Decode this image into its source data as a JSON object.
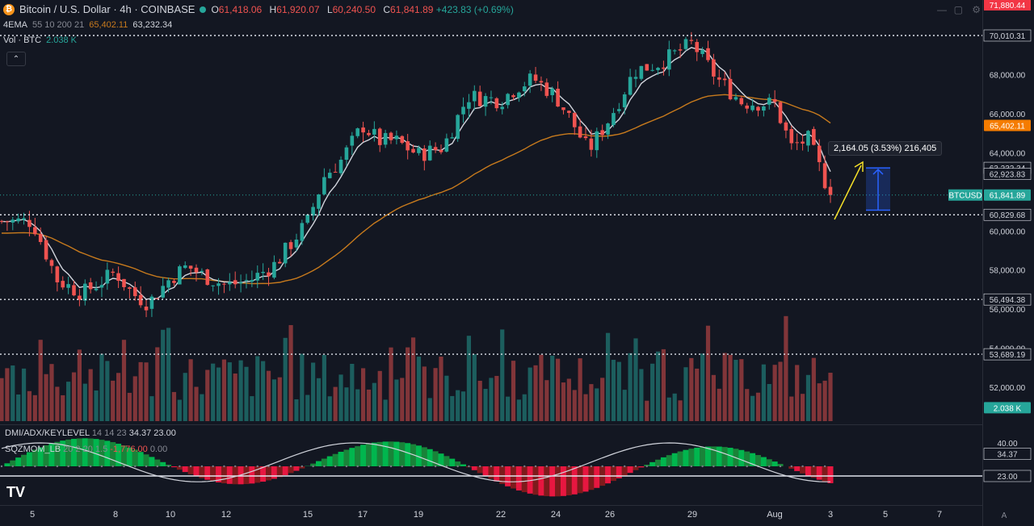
{
  "header": {
    "logo_glyph": "₿",
    "symbol_title": "Bitcoin / U.S. Dollar · 4h · COINBASE",
    "ohlc": {
      "o_label": "O",
      "o": "61,418.06",
      "h_label": "H",
      "h": "61,920.07",
      "l_label": "L",
      "l": "60,240.50",
      "c_label": "C",
      "c": "61,841.89",
      "change": "+423.83 (+0.69%)"
    },
    "ema_row": {
      "label": "4EMA",
      "params": "55 10 200 21",
      "v1": "65,402.11",
      "v2": "63,232.34"
    },
    "vol_row": {
      "label": "Vol · BTC",
      "value": "2.038 K"
    },
    "collapse_glyph": "⌃"
  },
  "price_axis": {
    "ticks": [
      {
        "label": "70,010.31",
        "price": 70010.31,
        "style": "boxed"
      },
      {
        "label": "68,000.00",
        "price": 68000
      },
      {
        "label": "66,000.00",
        "price": 66000
      },
      {
        "label": "65,402.11",
        "price": 65402.11,
        "style": "orange"
      },
      {
        "label": "64,000.00",
        "price": 64000
      },
      {
        "label": "63,232.34",
        "price": 63232.34,
        "style": "boxed"
      },
      {
        "label": "62,923.83",
        "price": 62923.83,
        "style": "boxed"
      },
      {
        "label": "61,841.89",
        "price": 61841.89,
        "style": "green"
      },
      {
        "label": "60,829.68",
        "price": 60829.68,
        "style": "boxed"
      },
      {
        "label": "60,000.00",
        "price": 60000
      },
      {
        "label": "58,000.00",
        "price": 58000
      },
      {
        "label": "56,494.38",
        "price": 56494.38,
        "style": "boxed"
      },
      {
        "label": "56,000.00",
        "price": 56000
      },
      {
        "label": "54,000.00",
        "price": 54000
      },
      {
        "label": "53,689.19",
        "price": 53689.19,
        "style": "boxed"
      },
      {
        "label": "52,000.00",
        "price": 52000
      },
      {
        "label": "2.038 K",
        "price": 50950,
        "style": "vol"
      }
    ],
    "top_tag": "71,880.44",
    "symbol_tag": "BTCUSD"
  },
  "levels": [
    70010.31,
    60829.68,
    56494.38,
    53689.19
  ],
  "measure_tool": {
    "text": "2,164.05 (3.53%) 216,405",
    "from_price": 61068.29,
    "to_price": 63232.34
  },
  "indicators": {
    "dmi_label": "DMI/ADX/KEYLEVEL",
    "dmi_params": "14 14 23",
    "dmi_v1": "34.37",
    "dmi_v2": "23.00",
    "sqz_label": "SQZMOM_LB",
    "sqz_params": "20 2 20 1.5",
    "sqz_v1": "-1,776.00",
    "sqz_v2": "0.00",
    "axis": [
      {
        "label": "40.00",
        "value": 40
      },
      {
        "label": "34.37",
        "value": 34.37,
        "style": "boxed"
      },
      {
        "label": "23.00",
        "value": 23,
        "style": "boxed"
      }
    ]
  },
  "time_axis": {
    "labels": [
      {
        "label": "5",
        "x_index": 0
      },
      {
        "label": "8",
        "x_index": 1
      },
      {
        "label": "10",
        "x_index": 2
      },
      {
        "label": "12",
        "x_index": 3
      },
      {
        "label": "15",
        "x_index": 4
      },
      {
        "label": "17",
        "x_index": 5
      },
      {
        "label": "19",
        "x_index": 6
      },
      {
        "label": "22",
        "x_index": 7
      },
      {
        "label": "24",
        "x_index": 8
      },
      {
        "label": "26",
        "x_index": 9
      },
      {
        "label": "29",
        "x_index": 10
      },
      {
        "label": "Aug",
        "x_index": 11
      },
      {
        "label": "3",
        "x_index": 12
      },
      {
        "label": "5",
        "x_index": 13
      },
      {
        "label": "7",
        "x_index": 14
      }
    ]
  },
  "chart_data": {
    "type": "candlestick",
    "title": "Bitcoin / U.S. Dollar · 4h · COINBASE",
    "x": [
      "5",
      "8",
      "10",
      "12",
      "15",
      "17",
      "19",
      "22",
      "24",
      "26",
      "29",
      "Aug",
      "3"
    ],
    "close_path_points": [
      [
        0,
        60500
      ],
      [
        0.3,
        57500
      ],
      [
        0.6,
        56800
      ],
      [
        1.0,
        57900
      ],
      [
        1.3,
        56800
      ],
      [
        1.6,
        56300
      ],
      [
        2.0,
        57600
      ],
      [
        2.3,
        58200
      ],
      [
        2.6,
        57700
      ],
      [
        3.0,
        57200
      ],
      [
        3.3,
        57500
      ],
      [
        3.6,
        58300
      ],
      [
        4.0,
        60500
      ],
      [
        4.3,
        62800
      ],
      [
        4.6,
        63600
      ],
      [
        5.0,
        65400
      ],
      [
        5.3,
        64600
      ],
      [
        5.6,
        64600
      ],
      [
        6.0,
        63900
      ],
      [
        6.3,
        64300
      ],
      [
        6.6,
        66900
      ],
      [
        7.0,
        66700
      ],
      [
        7.3,
        67400
      ],
      [
        7.6,
        67800
      ],
      [
        8.0,
        66900
      ],
      [
        8.3,
        65600
      ],
      [
        8.6,
        64100
      ],
      [
        9.0,
        65800
      ],
      [
        9.3,
        68200
      ],
      [
        9.6,
        68600
      ],
      [
        10.0,
        69600
      ],
      [
        10.3,
        67800
      ],
      [
        10.6,
        66600
      ],
      [
        11.0,
        66500
      ],
      [
        11.3,
        64300
      ],
      [
        11.6,
        64700
      ],
      [
        12.0,
        61841.89
      ]
    ],
    "ema_fast_last": 63232.34,
    "ema_slow_last": 65402.11,
    "volume_last": "2.038 K",
    "colors": {
      "up": "#26a69a",
      "down": "#ef5350",
      "ema_fast": "#d1d4dc",
      "ema_slow": "#c77a1d",
      "measure": "#2962ff",
      "arrow": "#f5e028"
    }
  }
}
